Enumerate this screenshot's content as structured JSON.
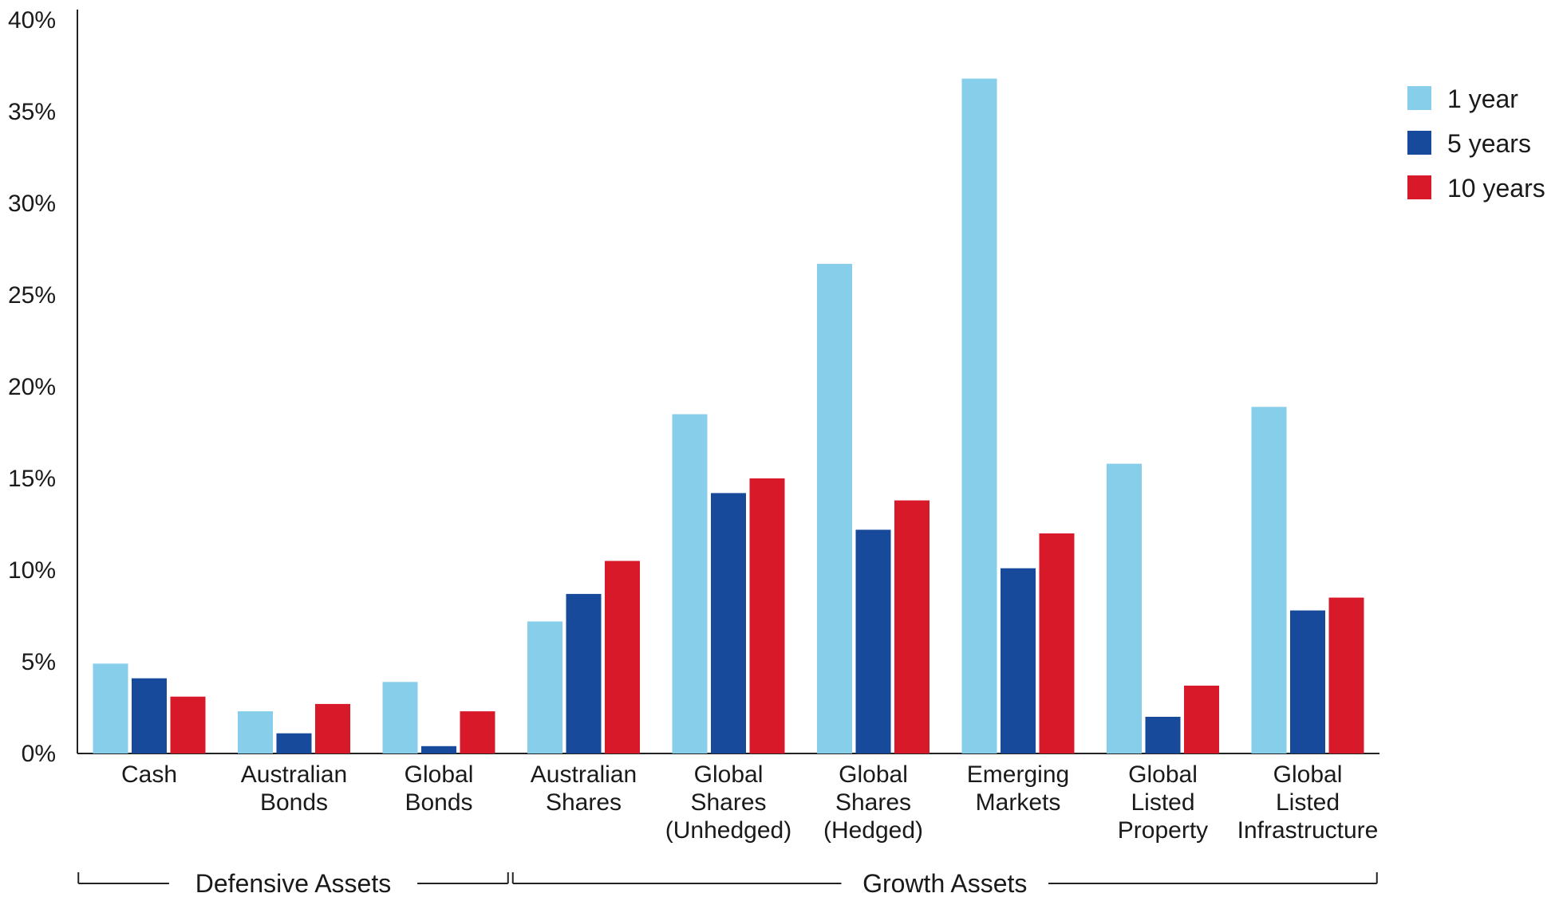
{
  "chart_data": {
    "type": "bar",
    "categories": [
      [
        "Cash"
      ],
      [
        "Australian",
        "Bonds"
      ],
      [
        "Global",
        "Bonds"
      ],
      [
        "Australian",
        "Shares"
      ],
      [
        "Global",
        "Shares",
        "(Unhedged)"
      ],
      [
        "Global",
        "Shares",
        "(Hedged)"
      ],
      [
        "Emerging",
        "Markets"
      ],
      [
        "Global",
        "Listed",
        "Property"
      ],
      [
        "Global",
        "Listed",
        "Infrastructure"
      ]
    ],
    "series": [
      {
        "name": "1 year",
        "color": "#87ceeb",
        "values": [
          4.9,
          2.3,
          3.9,
          7.2,
          18.5,
          26.7,
          36.8,
          15.8,
          18.9
        ]
      },
      {
        "name": "5 years",
        "color": "#174a9b",
        "values": [
          4.1,
          1.1,
          0.4,
          8.7,
          14.2,
          12.2,
          10.1,
          2.0,
          7.8
        ]
      },
      {
        "name": "10 years",
        "color": "#d8192a",
        "values": [
          3.1,
          2.7,
          2.3,
          10.5,
          15.0,
          13.8,
          12.0,
          3.7,
          8.5
        ]
      }
    ],
    "ylim": [
      0,
      40
    ],
    "yticks": [
      {
        "value": 0,
        "label": "0%"
      },
      {
        "value": 5,
        "label": "5%"
      },
      {
        "value": 10,
        "label": "10%"
      },
      {
        "value": 15,
        "label": "15%"
      },
      {
        "value": 20,
        "label": "20%"
      },
      {
        "value": 25,
        "label": "25%"
      },
      {
        "value": 30,
        "label": "30%"
      },
      {
        "value": 35,
        "label": "35%"
      },
      {
        "value": 40,
        "label": "40%"
      }
    ],
    "groups": [
      {
        "label": "Defensive Assets",
        "from": 0,
        "to": 2
      },
      {
        "label": "Growth Assets",
        "from": 3,
        "to": 8
      }
    ],
    "legend_position": "top-right",
    "grid": false,
    "title": "",
    "xlabel": "",
    "ylabel": ""
  }
}
